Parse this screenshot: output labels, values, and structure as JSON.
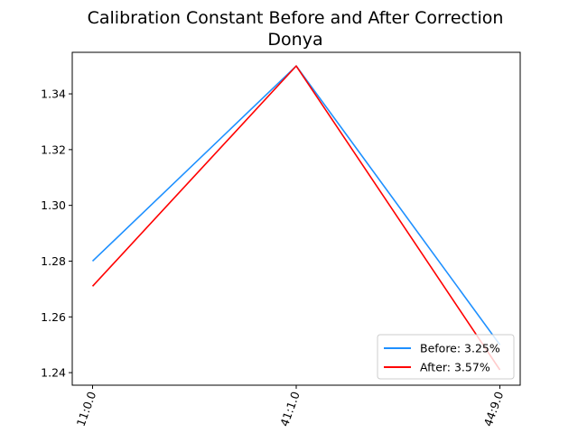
{
  "chart_data": {
    "type": "line",
    "title": "Calibration Constant Before and After Correction",
    "subtitle": "Donya",
    "xlabel": "",
    "ylabel": "",
    "categories": [
      "11:0.0",
      "41:1.0",
      "44:9.0"
    ],
    "y_ticks": [
      "1.24",
      "1.26",
      "1.28",
      "1.30",
      "1.32",
      "1.34"
    ],
    "ylim": [
      1.2355,
      1.3549
    ],
    "grid": false,
    "legend_position": "lower-right",
    "series": [
      {
        "name": "Before: 3.25%",
        "color": "#1e90ff",
        "values": [
          1.28,
          1.35,
          1.25
        ]
      },
      {
        "name": "After: 3.57%",
        "color": "#ff0000",
        "values": [
          1.271,
          1.35,
          1.241
        ]
      }
    ]
  }
}
